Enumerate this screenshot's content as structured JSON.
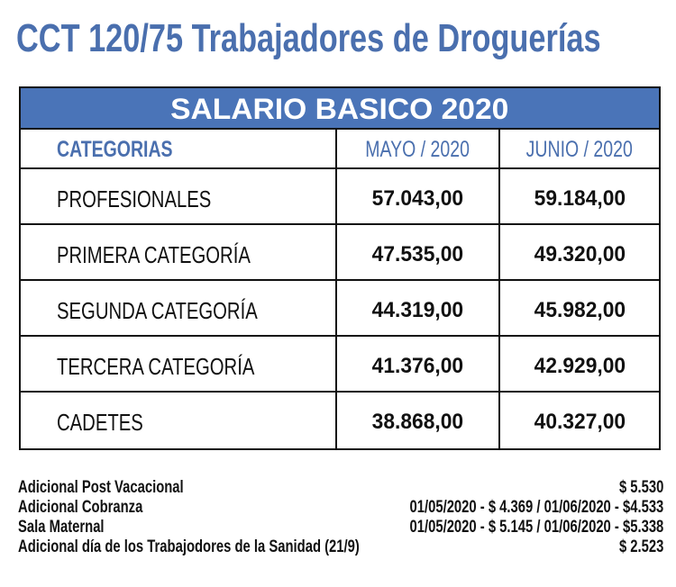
{
  "title": "CCT 120/75 Trabajadores de Droguerías",
  "table": {
    "banner": "SALARIO BASICO 2020",
    "headers": [
      "CATEGORIAS",
      "MAYO / 2020",
      "JUNIO / 2020"
    ],
    "rows": [
      {
        "category": "PROFESIONALES",
        "mayo": "57.043,00",
        "junio": "59.184,00"
      },
      {
        "category": "PRIMERA CATEGORÍA",
        "mayo": "47.535,00",
        "junio": "49.320,00"
      },
      {
        "category": "SEGUNDA CATEGORÍA",
        "mayo": "44.319,00",
        "junio": "45.982,00"
      },
      {
        "category": "TERCERA CATEGORÍA",
        "mayo": "41.376,00",
        "junio": "42.929,00"
      },
      {
        "category": "CADETES",
        "mayo": "38.868,00",
        "junio": "40.327,00"
      }
    ]
  },
  "notes": [
    {
      "label": "Adicional Post Vacacional",
      "value": "$ 5.530"
    },
    {
      "label": "Adicional Cobranza",
      "value": "01/05/2020 - $ 4.369 /  01/06/2020 - $4.533"
    },
    {
      "label": "Sala Maternal",
      "value": "01/05/2020 - $ 5.145 /  01/06/2020 - $5.338"
    },
    {
      "label": "Adicional día de los Trabajodores de la Sanidad (21/9)",
      "value": "$ 2.523"
    }
  ],
  "colors": {
    "title": "#4a6fae",
    "banner": "#4a74b8"
  }
}
